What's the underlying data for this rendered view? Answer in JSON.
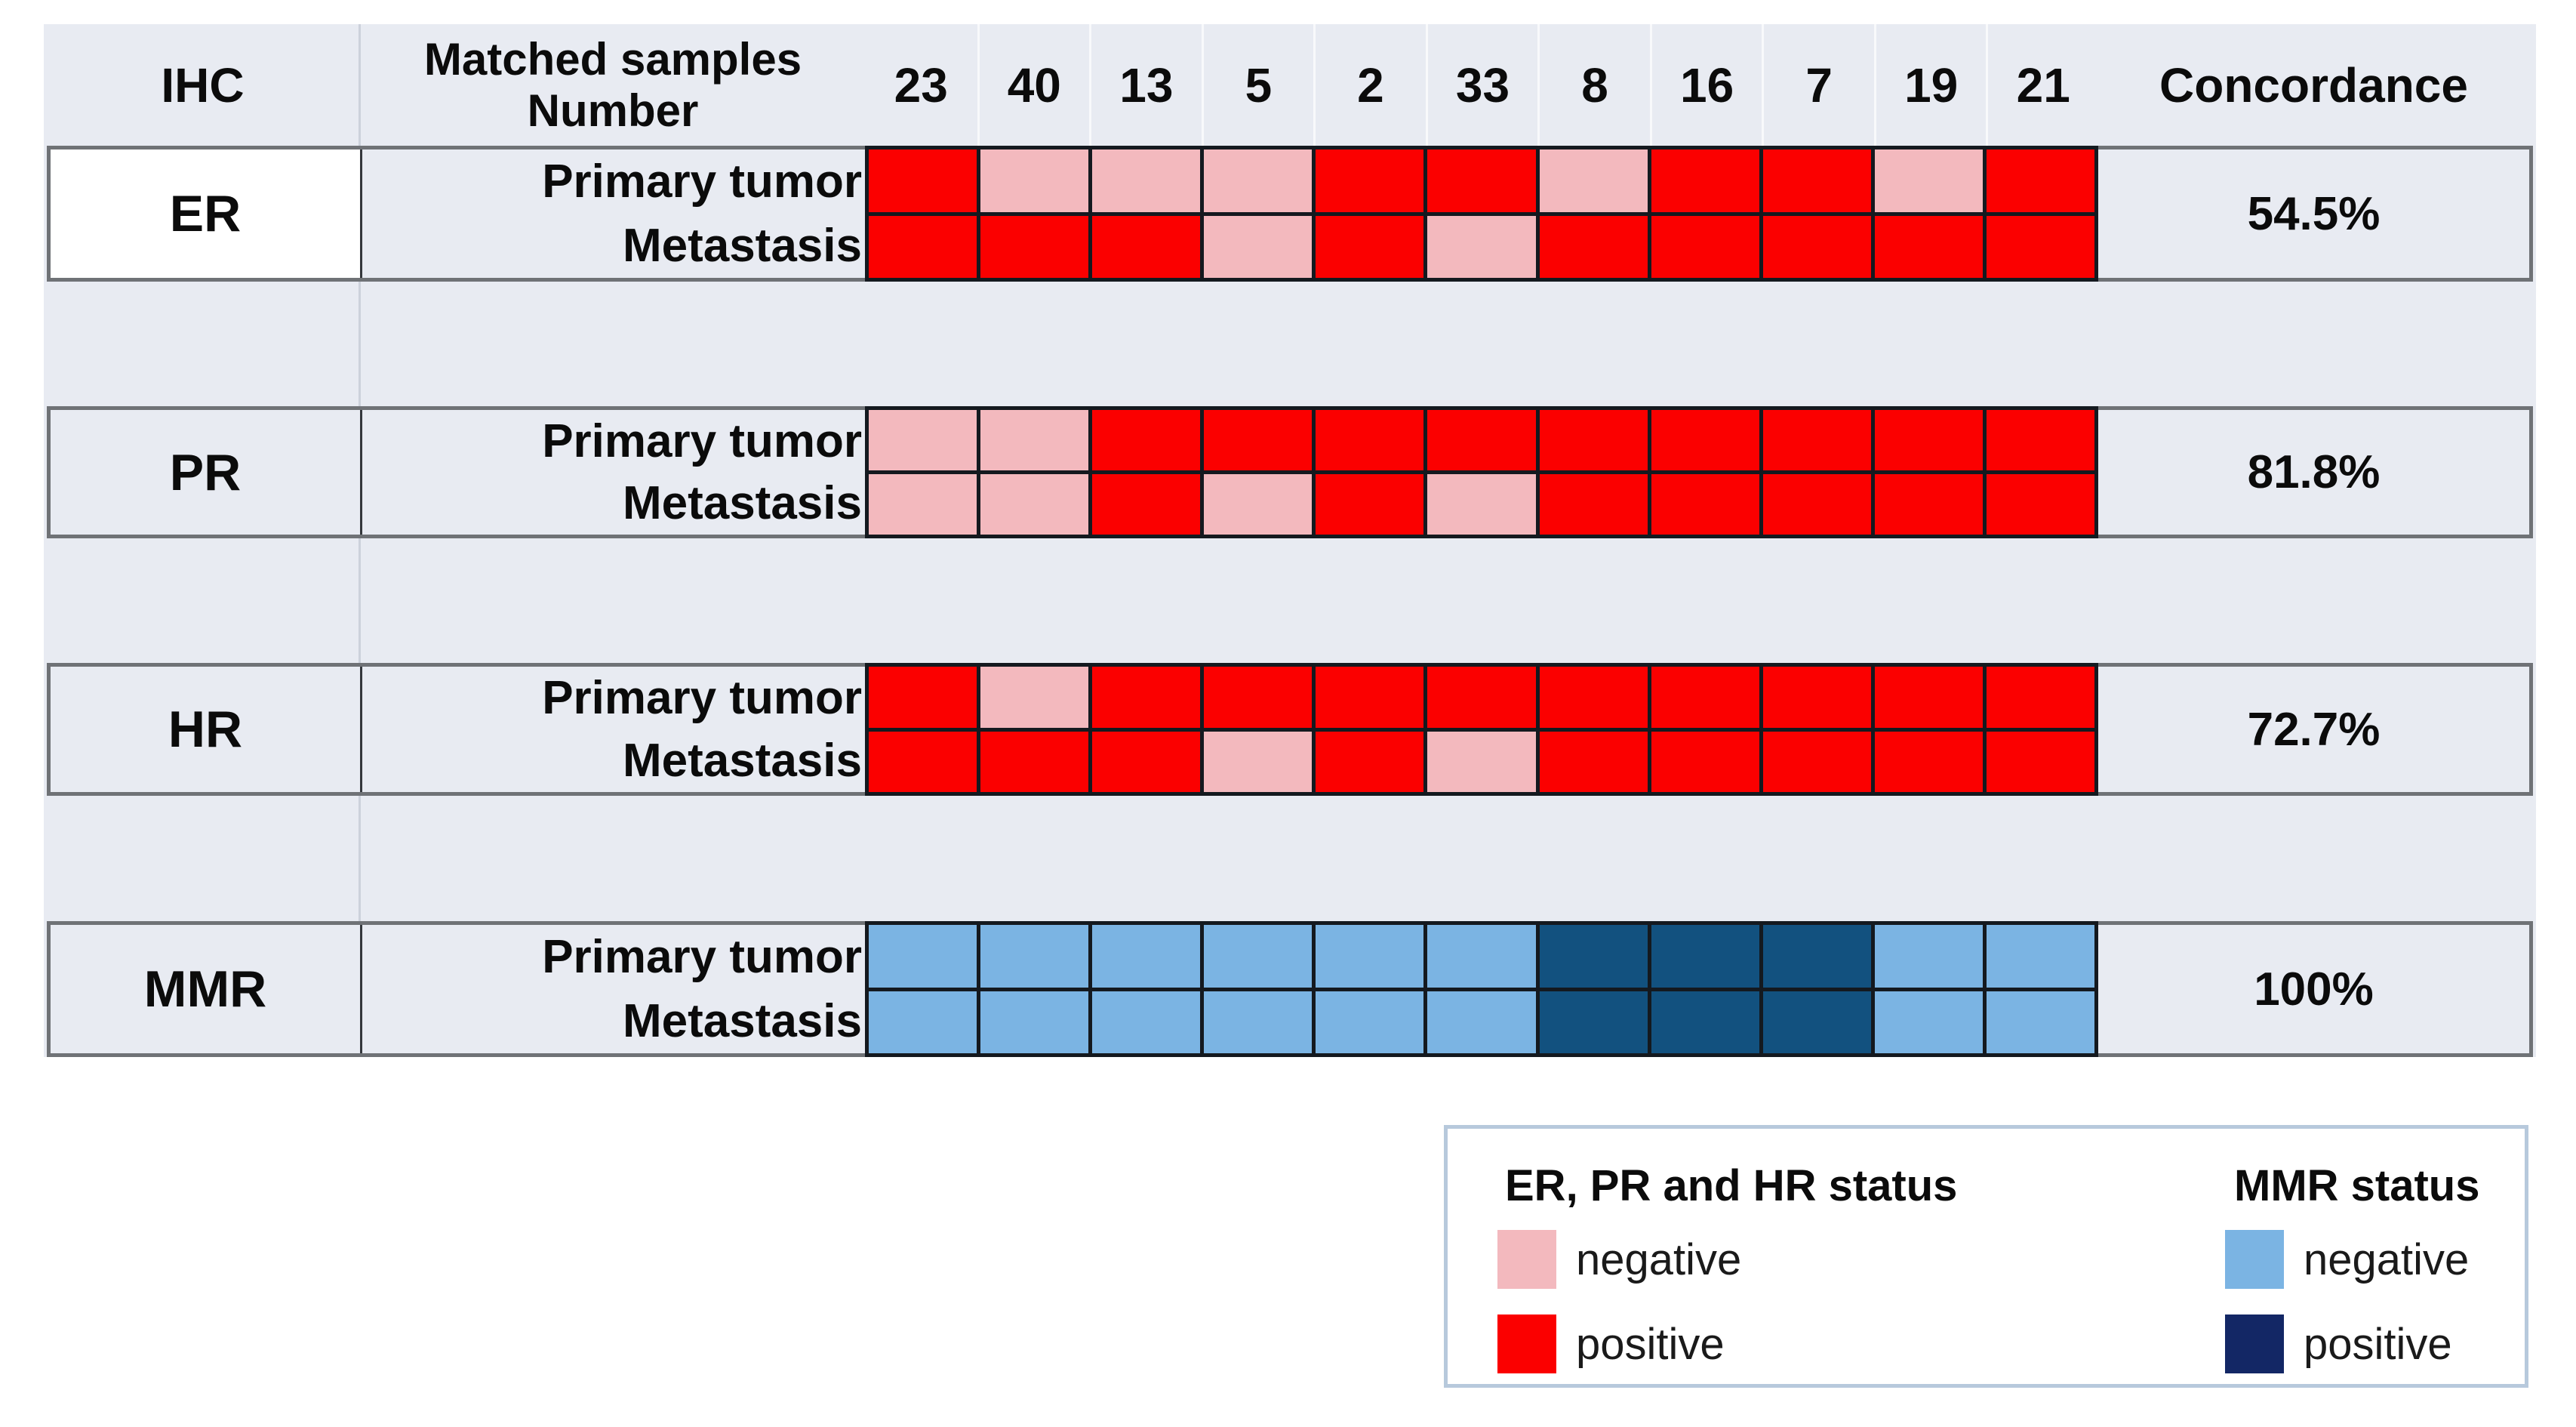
{
  "header": {
    "ihc_label": "IHC",
    "matched_samples_line1": "Matched samples",
    "matched_samples_line2": "Number",
    "concordance_label": "Concordance"
  },
  "row_labels": {
    "primary": "Primary tumor",
    "metastasis": "Metastasis"
  },
  "colors": {
    "hormone_negative": "#F3B9BE",
    "hormone_positive": "#FB0000",
    "mmr_negative": "#7BB4E3",
    "mmr_positive": "#12517F",
    "legend_mmr_positive": "#132765",
    "panel_background": "#E8EBF2",
    "grid_line": "#14191F",
    "block_border": "#6F7276",
    "legend_border": "#B7C9DC"
  },
  "chart_data": {
    "type": "heatmap",
    "columns": [
      "23",
      "40",
      "13",
      "5",
      "2",
      "33",
      "8",
      "16",
      "7",
      "19",
      "21"
    ],
    "column_header": "Matched samples Number",
    "value_domain": [
      "negative",
      "positive"
    ],
    "rows": [
      {
        "marker": "ER",
        "highlight": true,
        "primary_tumor": [
          "positive",
          "negative",
          "negative",
          "negative",
          "positive",
          "positive",
          "negative",
          "positive",
          "positive",
          "negative",
          "positive"
        ],
        "metastasis": [
          "positive",
          "positive",
          "positive",
          "negative",
          "positive",
          "negative",
          "positive",
          "positive",
          "positive",
          "positive",
          "positive"
        ],
        "concordance": "54.5%"
      },
      {
        "marker": "PR",
        "highlight": false,
        "primary_tumor": [
          "negative",
          "negative",
          "positive",
          "positive",
          "positive",
          "positive",
          "positive",
          "positive",
          "positive",
          "positive",
          "positive"
        ],
        "metastasis": [
          "negative",
          "negative",
          "positive",
          "negative",
          "positive",
          "negative",
          "positive",
          "positive",
          "positive",
          "positive",
          "positive"
        ],
        "concordance": "81.8%"
      },
      {
        "marker": "HR",
        "highlight": false,
        "primary_tumor": [
          "positive",
          "negative",
          "positive",
          "positive",
          "positive",
          "positive",
          "positive",
          "positive",
          "positive",
          "positive",
          "positive"
        ],
        "metastasis": [
          "positive",
          "positive",
          "positive",
          "negative",
          "positive",
          "negative",
          "positive",
          "positive",
          "positive",
          "positive",
          "positive"
        ],
        "concordance": "72.7%"
      },
      {
        "marker": "MMR",
        "highlight": false,
        "primary_tumor": [
          "negative",
          "negative",
          "negative",
          "negative",
          "negative",
          "negative",
          "positive",
          "positive",
          "positive",
          "negative",
          "negative"
        ],
        "metastasis": [
          "negative",
          "negative",
          "negative",
          "negative",
          "negative",
          "negative",
          "positive",
          "positive",
          "positive",
          "negative",
          "negative"
        ],
        "concordance": "100%"
      }
    ]
  },
  "legend": {
    "hormone": {
      "title": "ER, PR and HR status",
      "items": [
        {
          "label": "negative",
          "color": "#F3B9BE"
        },
        {
          "label": "positive",
          "color": "#FB0000"
        }
      ]
    },
    "mmr": {
      "title": "MMR status",
      "items": [
        {
          "label": "negative",
          "color": "#7BB4E3"
        },
        {
          "label": "positive",
          "color": "#132765"
        }
      ]
    }
  }
}
